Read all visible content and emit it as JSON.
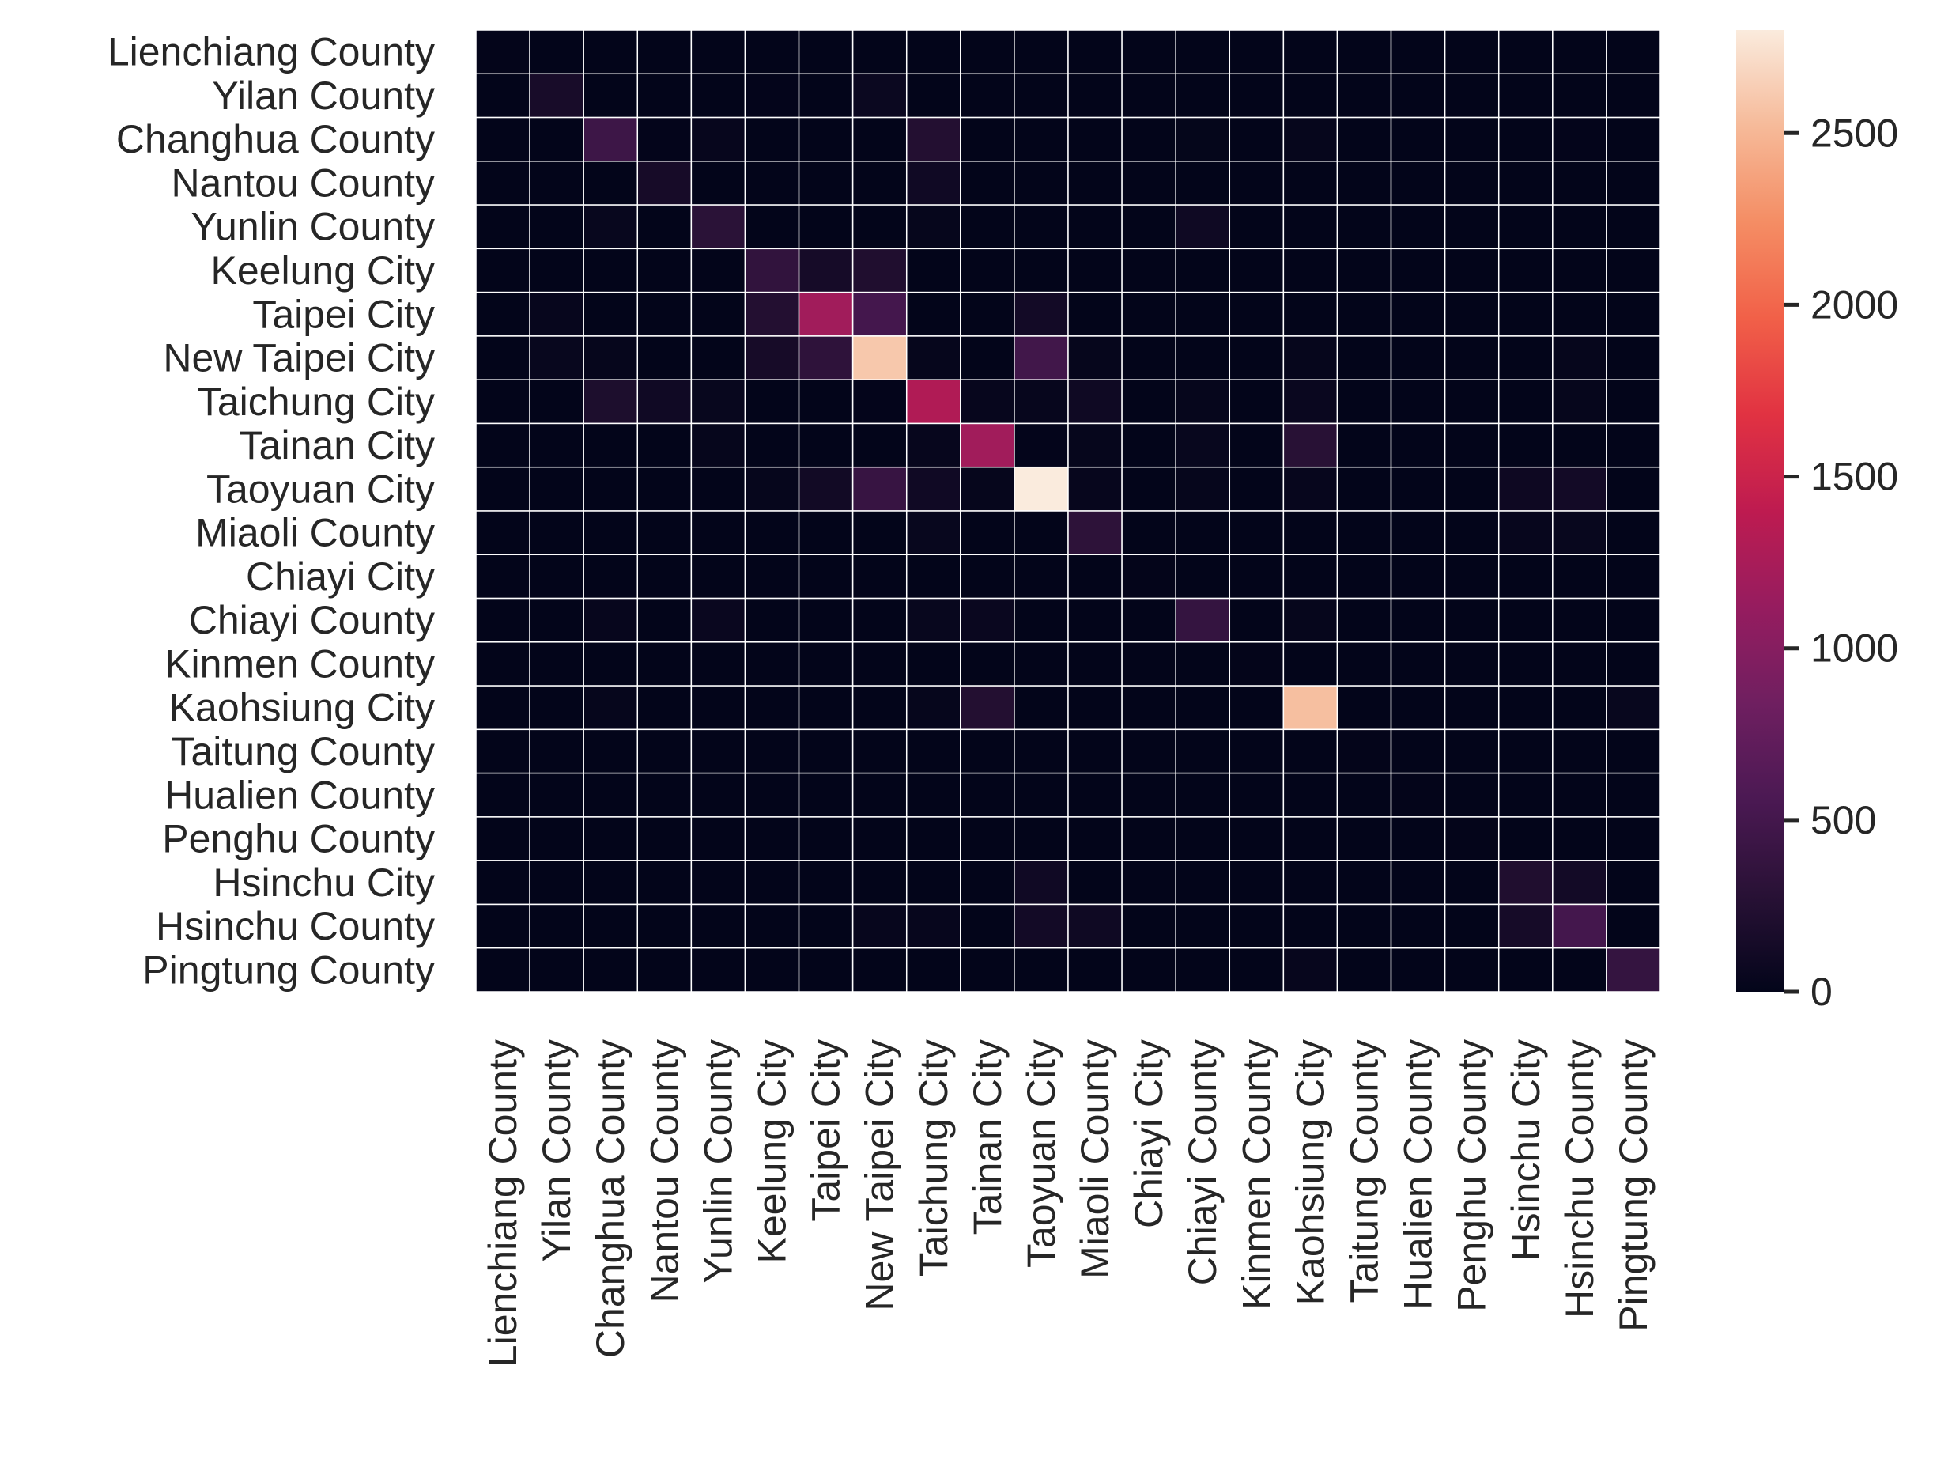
{
  "chart_data": {
    "type": "heatmap",
    "title": "",
    "xlabel": "",
    "ylabel": "",
    "colormap": "rocket",
    "grid_line_color": "#ffffff",
    "rows": [
      "Lienchiang County",
      "Yilan County",
      "Changhua County",
      "Nantou County",
      "Yunlin County",
      "Keelung City",
      "Taipei City",
      "New Taipei City",
      "Taichung City",
      "Tainan City",
      "Taoyuan City",
      "Miaoli County",
      "Chiayi City",
      "Chiayi County",
      "Kinmen County",
      "Kaohsiung City",
      "Taitung County",
      "Hualien County",
      "Penghu County",
      "Hsinchu City",
      "Hsinchu County",
      "Pingtung County"
    ],
    "columns": [
      "Lienchiang County",
      "Yilan County",
      "Changhua County",
      "Nantou County",
      "Yunlin County",
      "Keelung City",
      "Taipei City",
      "New Taipei City",
      "Taichung City",
      "Tainan City",
      "Taoyuan City",
      "Miaoli County",
      "Chiayi City",
      "Chiayi County",
      "Kinmen County",
      "Kaohsiung City",
      "Taitung County",
      "Hualien County",
      "Penghu County",
      "Hsinchu City",
      "Hsinchu County",
      "Pingtung County"
    ],
    "values": [
      [
        5,
        0,
        0,
        0,
        0,
        0,
        0,
        0,
        0,
        0,
        0,
        0,
        0,
        0,
        0,
        0,
        0,
        0,
        0,
        0,
        0,
        0
      ],
      [
        0,
        160,
        0,
        0,
        0,
        10,
        0,
        60,
        0,
        0,
        0,
        0,
        0,
        0,
        0,
        0,
        0,
        0,
        0,
        0,
        0,
        0
      ],
      [
        0,
        0,
        450,
        10,
        30,
        0,
        0,
        0,
        240,
        0,
        0,
        0,
        0,
        15,
        0,
        20,
        0,
        0,
        0,
        0,
        10,
        0
      ],
      [
        0,
        0,
        0,
        150,
        0,
        0,
        0,
        0,
        100,
        0,
        0,
        0,
        0,
        0,
        0,
        0,
        0,
        0,
        0,
        0,
        0,
        0
      ],
      [
        0,
        0,
        40,
        0,
        300,
        0,
        0,
        0,
        20,
        0,
        0,
        0,
        0,
        90,
        0,
        0,
        0,
        0,
        0,
        0,
        0,
        0
      ],
      [
        0,
        0,
        0,
        0,
        0,
        350,
        140,
        220,
        0,
        0,
        0,
        0,
        0,
        0,
        0,
        0,
        0,
        0,
        0,
        0,
        0,
        0
      ],
      [
        0,
        30,
        0,
        0,
        0,
        240,
        1200,
        500,
        0,
        0,
        120,
        0,
        0,
        0,
        0,
        0,
        0,
        0,
        0,
        0,
        0,
        0
      ],
      [
        0,
        40,
        20,
        0,
        0,
        150,
        330,
        2600,
        20,
        0,
        480,
        20,
        0,
        0,
        0,
        20,
        0,
        0,
        0,
        0,
        20,
        0
      ],
      [
        0,
        0,
        200,
        100,
        40,
        0,
        0,
        10,
        1300,
        30,
        30,
        90,
        0,
        20,
        0,
        50,
        0,
        0,
        0,
        0,
        20,
        0
      ],
      [
        0,
        0,
        0,
        0,
        20,
        0,
        0,
        0,
        30,
        1200,
        10,
        20,
        0,
        40,
        0,
        280,
        0,
        0,
        0,
        0,
        0,
        0
      ],
      [
        0,
        0,
        0,
        0,
        0,
        20,
        110,
        400,
        100,
        20,
        2800,
        30,
        0,
        20,
        0,
        30,
        0,
        0,
        0,
        80,
        120,
        0
      ],
      [
        0,
        0,
        0,
        0,
        0,
        0,
        0,
        0,
        40,
        0,
        0,
        320,
        0,
        0,
        0,
        0,
        0,
        0,
        0,
        30,
        40,
        0
      ],
      [
        0,
        0,
        0,
        0,
        0,
        0,
        0,
        0,
        0,
        0,
        0,
        0,
        5,
        0,
        0,
        0,
        0,
        0,
        0,
        0,
        0,
        0
      ],
      [
        0,
        0,
        30,
        0,
        50,
        0,
        0,
        0,
        40,
        50,
        0,
        0,
        0,
        380,
        0,
        20,
        0,
        0,
        0,
        0,
        0,
        0
      ],
      [
        0,
        0,
        0,
        0,
        0,
        0,
        0,
        0,
        0,
        0,
        0,
        0,
        0,
        0,
        5,
        0,
        0,
        0,
        0,
        0,
        0,
        0
      ],
      [
        0,
        0,
        20,
        0,
        0,
        0,
        0,
        0,
        20,
        240,
        0,
        0,
        0,
        0,
        0,
        2550,
        0,
        0,
        0,
        0,
        0,
        40
      ],
      [
        0,
        0,
        0,
        0,
        0,
        0,
        0,
        0,
        0,
        0,
        0,
        0,
        0,
        0,
        0,
        0,
        5,
        0,
        0,
        0,
        0,
        0
      ],
      [
        0,
        0,
        0,
        0,
        0,
        0,
        0,
        0,
        0,
        0,
        0,
        0,
        0,
        0,
        0,
        0,
        0,
        5,
        0,
        0,
        0,
        0
      ],
      [
        0,
        0,
        0,
        0,
        0,
        0,
        0,
        0,
        0,
        0,
        0,
        0,
        0,
        0,
        0,
        0,
        0,
        0,
        5,
        0,
        0,
        0
      ],
      [
        0,
        0,
        0,
        0,
        0,
        0,
        0,
        0,
        0,
        0,
        100,
        0,
        0,
        0,
        0,
        0,
        0,
        0,
        0,
        220,
        120,
        0
      ],
      [
        0,
        0,
        0,
        0,
        0,
        0,
        0,
        30,
        30,
        0,
        120,
        90,
        0,
        0,
        0,
        0,
        0,
        0,
        0,
        140,
        500,
        0
      ],
      [
        0,
        0,
        0,
        0,
        0,
        0,
        0,
        0,
        0,
        0,
        0,
        0,
        0,
        0,
        0,
        30,
        0,
        0,
        0,
        0,
        0,
        380
      ]
    ],
    "colorbar": {
      "min": 0,
      "max": 2800,
      "ticks": [
        0,
        500,
        1000,
        1500,
        2000,
        2500
      ],
      "tick_labels": [
        "0",
        "500",
        "1000",
        "1500",
        "2000",
        "2500"
      ]
    }
  }
}
